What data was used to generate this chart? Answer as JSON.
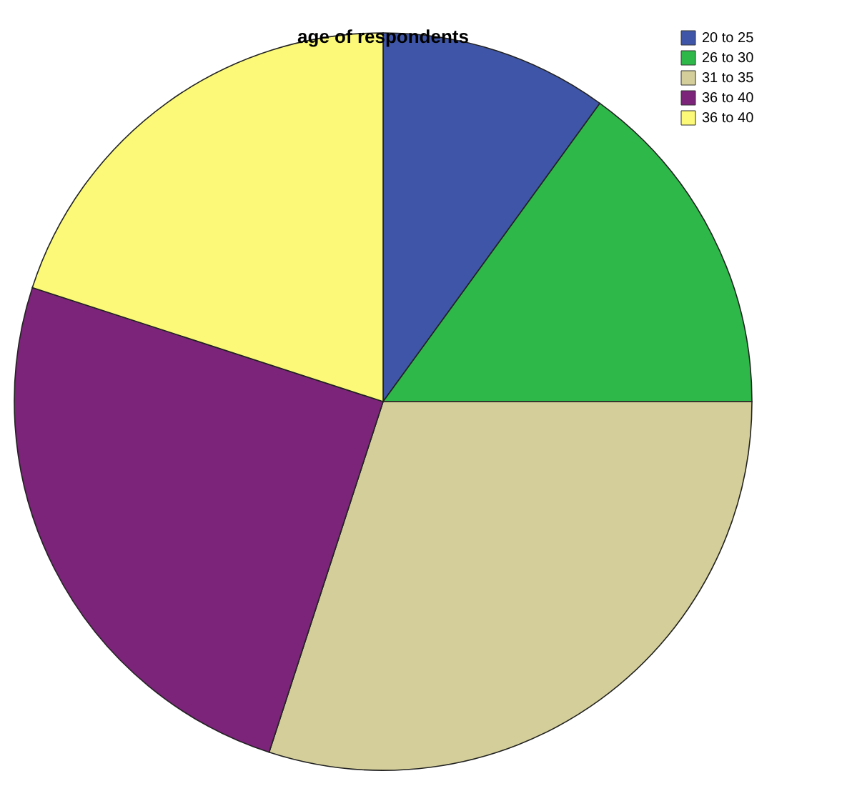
{
  "chart_data": {
    "type": "pie",
    "title": "age of respondents",
    "categories": [
      "20 to 25",
      "26 to 30",
      "31 to 35",
      "36 to 40",
      "36 to 40"
    ],
    "values": [
      10,
      15,
      30,
      25,
      20
    ],
    "colors": [
      "#3f56a8",
      "#2fb84a",
      "#d4cf9a",
      "#7b2479",
      "#fbf977"
    ],
    "legend": "top right"
  }
}
